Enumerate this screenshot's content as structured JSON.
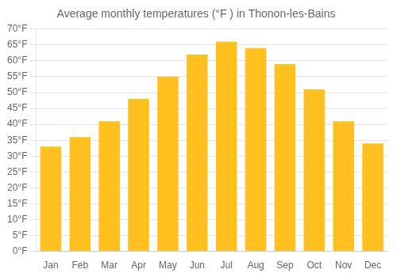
{
  "chart_data": {
    "type": "bar",
    "title": "Average monthly temperatures (°F ) in Thonon-les-Bains",
    "categories": [
      "Jan",
      "Feb",
      "Mar",
      "Apr",
      "May",
      "Jun",
      "Jul",
      "Aug",
      "Sep",
      "Oct",
      "Nov",
      "Dec"
    ],
    "values": [
      33,
      36,
      41,
      48,
      55,
      62,
      66,
      64,
      59,
      51,
      41,
      34
    ],
    "color": "#FFC020",
    "ylim": [
      0,
      70
    ],
    "yticks": [
      {
        "value": 0,
        "label": "0°F"
      },
      {
        "value": 5,
        "label": "5°F"
      },
      {
        "value": 10,
        "label": "10°F"
      },
      {
        "value": 15,
        "label": "15°F"
      },
      {
        "value": 20,
        "label": "20°F"
      },
      {
        "value": 25,
        "label": "25°F"
      },
      {
        "value": 30,
        "label": "30°F"
      },
      {
        "value": 35,
        "label": "35°F"
      },
      {
        "value": 40,
        "label": "40°F"
      },
      {
        "value": 45,
        "label": "45°F"
      },
      {
        "value": 50,
        "label": "50°F"
      },
      {
        "value": 55,
        "label": "55°F"
      },
      {
        "value": 60,
        "label": "60°F"
      },
      {
        "value": 65,
        "label": "65°F"
      },
      {
        "value": 70,
        "label": "70°F"
      }
    ],
    "grid": true
  }
}
